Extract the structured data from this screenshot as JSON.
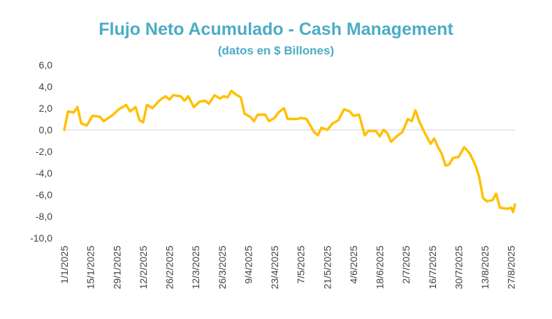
{
  "chart_data": {
    "type": "line",
    "title": "Flujo Neto Acumulado - Cash Management",
    "subtitle": "(datos en $ Billones)",
    "xlabel": "",
    "ylabel": "",
    "ylim": [
      -10,
      6
    ],
    "y_ticks": [
      "6,0",
      "4,0",
      "2,0",
      "0,0",
      "-2,0",
      "-4,0",
      "-6,0",
      "-8,0",
      "-10,0"
    ],
    "y_tick_values": [
      6,
      4,
      2,
      0,
      -2,
      -4,
      -6,
      -8,
      -10
    ],
    "x_ticks": [
      "1/1/2025",
      "15/1/2025",
      "29/1/2025",
      "12/2/2025",
      "26/2/2025",
      "12/3/2025",
      "26/3/2025",
      "9/4/2025",
      "23/4/2025",
      "7/5/2025",
      "21/5/2025",
      "4/6/2025",
      "18/6/2025",
      "2/7/2025",
      "16/7/2025",
      "30/7/2025",
      "13/8/2025",
      "27/8/2025"
    ],
    "grid": false,
    "zero_line": true,
    "colors": {
      "line": "#FFC000",
      "title": "#4BACC6",
      "axis": "#D9D9D9"
    },
    "series": [
      {
        "points": [
          [
            "1/1/2025",
            0.0
          ],
          [
            "3/1/2025",
            1.7
          ],
          [
            "6/1/2025",
            1.6
          ],
          [
            "8/1/2025",
            2.1
          ],
          [
            "10/1/2025",
            0.6
          ],
          [
            "13/1/2025",
            0.4
          ],
          [
            "16/1/2025",
            1.3
          ],
          [
            "20/1/2025",
            1.2
          ],
          [
            "22/1/2025",
            0.8
          ],
          [
            "27/1/2025",
            1.4
          ],
          [
            "30/1/2025",
            1.9
          ],
          [
            "3/2/2025",
            2.3
          ],
          [
            "5/2/2025",
            1.7
          ],
          [
            "8/2/2025",
            2.1
          ],
          [
            "10/2/2025",
            0.9
          ],
          [
            "12/2/2025",
            0.7
          ],
          [
            "14/2/2025",
            2.3
          ],
          [
            "17/2/2025",
            2.0
          ],
          [
            "20/2/2025",
            2.6
          ],
          [
            "22/2/2025",
            2.9
          ],
          [
            "24/2/2025",
            3.1
          ],
          [
            "26/2/2025",
            2.8
          ],
          [
            "28/2/2025",
            3.2
          ],
          [
            "4/3/2025",
            3.1
          ],
          [
            "6/3/2025",
            2.7
          ],
          [
            "8/3/2025",
            3.1
          ],
          [
            "11/3/2025",
            2.1
          ],
          [
            "14/3/2025",
            2.6
          ],
          [
            "17/3/2025",
            2.7
          ],
          [
            "19/3/2025",
            2.4
          ],
          [
            "22/3/2025",
            3.2
          ],
          [
            "25/3/2025",
            2.9
          ],
          [
            "27/3/2025",
            3.1
          ],
          [
            "29/3/2025",
            3.0
          ],
          [
            "31/3/2025",
            3.6
          ],
          [
            "2/4/2025",
            3.3
          ],
          [
            "5/4/2025",
            3.0
          ],
          [
            "7/4/2025",
            1.5
          ],
          [
            "10/4/2025",
            1.2
          ],
          [
            "12/4/2025",
            0.8
          ],
          [
            "14/4/2025",
            1.4
          ],
          [
            "18/4/2025",
            1.4
          ],
          [
            "20/4/2025",
            0.8
          ],
          [
            "23/4/2025",
            1.1
          ],
          [
            "25/4/2025",
            1.6
          ],
          [
            "28/4/2025",
            2.0
          ],
          [
            "30/4/2025",
            1.0
          ],
          [
            "5/5/2025",
            1.0
          ],
          [
            "7/5/2025",
            1.1
          ],
          [
            "10/5/2025",
            1.0
          ],
          [
            "12/5/2025",
            0.4
          ],
          [
            "14/5/2025",
            -0.2
          ],
          [
            "16/5/2025",
            -0.5
          ],
          [
            "18/5/2025",
            0.2
          ],
          [
            "21/5/2025",
            0.0
          ],
          [
            "24/5/2025",
            0.6
          ],
          [
            "27/5/2025",
            0.9
          ],
          [
            "30/5/2025",
            1.9
          ],
          [
            "2/6/2025",
            1.7
          ],
          [
            "4/6/2025",
            1.3
          ],
          [
            "7/6/2025",
            1.4
          ],
          [
            "10/6/2025",
            -0.5
          ],
          [
            "12/6/2025",
            -0.1
          ],
          [
            "16/6/2025",
            -0.1
          ],
          [
            "18/6/2025",
            -0.6
          ],
          [
            "20/6/2025",
            0.0
          ],
          [
            "22/6/2025",
            -0.3
          ],
          [
            "24/6/2025",
            -1.1
          ],
          [
            "27/6/2025",
            -0.6
          ],
          [
            "30/6/2025",
            -0.2
          ],
          [
            "3/7/2025",
            1.0
          ],
          [
            "5/7/2025",
            0.8
          ],
          [
            "7/7/2025",
            1.8
          ],
          [
            "9/7/2025",
            0.8
          ],
          [
            "12/7/2025",
            -0.3
          ],
          [
            "15/7/2025",
            -1.3
          ],
          [
            "17/7/2025",
            -0.8
          ],
          [
            "19/7/2025",
            -1.6
          ],
          [
            "21/7/2025",
            -2.2
          ],
          [
            "23/7/2025",
            -3.3
          ],
          [
            "25/7/2025",
            -3.2
          ],
          [
            "27/7/2025",
            -2.6
          ],
          [
            "30/7/2025",
            -2.5
          ],
          [
            "2/8/2025",
            -1.6
          ],
          [
            "5/8/2025",
            -2.2
          ],
          [
            "8/8/2025",
            -3.3
          ],
          [
            "10/8/2025",
            -4.4
          ],
          [
            "12/8/2025",
            -6.3
          ],
          [
            "14/8/2025",
            -6.6
          ],
          [
            "17/8/2025",
            -6.5
          ],
          [
            "19/8/2025",
            -5.9
          ],
          [
            "21/8/2025",
            -7.2
          ],
          [
            "25/8/2025",
            -7.3
          ],
          [
            "27/8/2025",
            -7.2
          ],
          [
            "28/8/2025",
            -7.6
          ],
          [
            "29/8/2025",
            -6.9
          ]
        ]
      }
    ]
  }
}
